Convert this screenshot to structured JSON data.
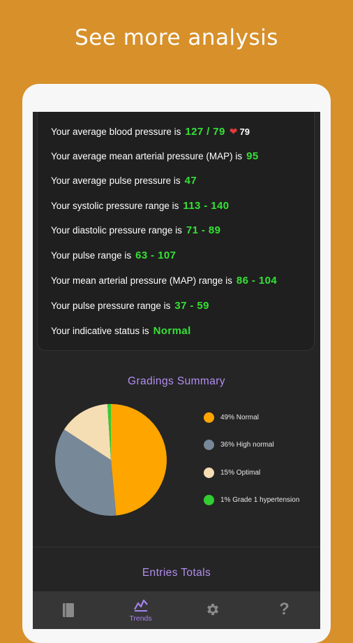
{
  "headline": "See more analysis",
  "stats": [
    {
      "label": "Your average blood pressure is",
      "value": "127 / 79",
      "pulse": "79"
    },
    {
      "label": "Your average mean arterial pressure (MAP) is",
      "value": "95"
    },
    {
      "label": "Your average pulse pressure is",
      "value": "47"
    },
    {
      "label": "Your systolic pressure range is",
      "value": "113 - 140"
    },
    {
      "label": "Your diastolic pressure range is",
      "value": "71 - 89"
    },
    {
      "label": "Your pulse range is",
      "value": "63 - 107"
    },
    {
      "label": "Your mean arterial pressure (MAP) range is",
      "value": "86 - 104"
    },
    {
      "label": "Your pulse pressure range is",
      "value": "37 - 59"
    },
    {
      "label": "Your indicative status is",
      "value": "Normal"
    }
  ],
  "gradings": {
    "title": "Gradings Summary",
    "legend": [
      {
        "label": "49% Normal",
        "percent": 49,
        "color": "#ffa500"
      },
      {
        "label": "36% High normal",
        "percent": 36,
        "color": "#778899"
      },
      {
        "label": "15% Optimal",
        "percent": 15,
        "color": "#f5deb3"
      },
      {
        "label": "1% Grade 1 hypertension",
        "percent": 1,
        "color": "#32cd32"
      }
    ]
  },
  "entries_totals": {
    "title": "Entries Totals"
  },
  "nav": {
    "items": [
      {
        "icon": "book-icon",
        "label": ""
      },
      {
        "icon": "trends-icon",
        "label": "Trends"
      },
      {
        "icon": "gear-icon",
        "label": ""
      },
      {
        "icon": "help-icon",
        "label": "?"
      }
    ]
  },
  "colors": {
    "background": "#d7902a",
    "accent": "#a583ef",
    "value": "#35e035"
  }
}
